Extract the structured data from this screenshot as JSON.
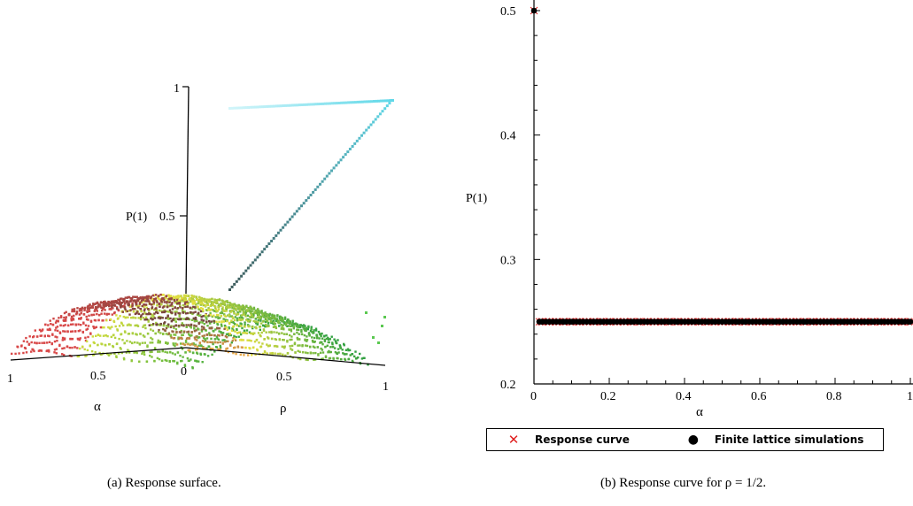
{
  "captions": {
    "a": "(a)  Response surface.",
    "b": "(b)  Response curve for ρ = 1/2."
  },
  "surface_labels": {
    "z_label": "P(1)",
    "z_tick_top": "1",
    "z_tick_mid": "0.5",
    "alpha_tick_1": "1",
    "alpha_tick_05": "0.5",
    "origin_tick": "0",
    "rho_tick_05": "0.5",
    "rho_tick_1": "1",
    "alpha_label": "α",
    "rho_label": "ρ"
  },
  "legend": {
    "response_label": "Response curve",
    "finite_label": "Finite lattice simulations"
  },
  "colors": {
    "response_marker": "#e02020",
    "finite_marker": "#000000",
    "surface_red": "#d84848",
    "surface_yellow": "#e8e040",
    "surface_green": "#30a040",
    "surface_cyan": "#60d8e8"
  },
  "chart_data": [
    {
      "type": "scatter",
      "title": "",
      "xlabel": "α",
      "ylabel": "ρ",
      "zlabel": "P(1)",
      "description_axes": [
        "α",
        "ρ",
        "P(1)"
      ],
      "zlim": [
        0,
        1
      ],
      "z_ticks": [
        "0.5",
        "1"
      ]
    },
    {
      "type": "scatter",
      "title": "",
      "xlabel": "α",
      "ylabel": "P(1)",
      "xlim": [
        0,
        1
      ],
      "ylim": [
        0.2,
        0.5
      ],
      "x_ticks": [
        "0",
        "0.2",
        "0.4",
        "0.6",
        "0.8",
        "1"
      ],
      "y_ticks": [
        "0.2",
        "0.3",
        "0.4",
        "0.5"
      ],
      "legend_position": "bottom",
      "series": [
        {
          "name": "Response curve",
          "marker": "x",
          "x": [
            0,
            0.02,
            0.04,
            0.06,
            0.08,
            0.1,
            0.12,
            0.14,
            0.16,
            0.18,
            0.2,
            0.22,
            0.24,
            0.26,
            0.28,
            0.3,
            0.32,
            0.34,
            0.36,
            0.38,
            0.4,
            0.42,
            0.44,
            0.46,
            0.48,
            0.5,
            0.52,
            0.54,
            0.56,
            0.58,
            0.6,
            0.62,
            0.64,
            0.66,
            0.68,
            0.7,
            0.72,
            0.74,
            0.76,
            0.78,
            0.8,
            0.82,
            0.84,
            0.86,
            0.88,
            0.9,
            0.92,
            0.94,
            0.96,
            0.98,
            1
          ],
          "y": [
            0.5,
            0.25,
            0.25,
            0.25,
            0.25,
            0.25,
            0.25,
            0.25,
            0.25,
            0.25,
            0.25,
            0.25,
            0.25,
            0.25,
            0.25,
            0.25,
            0.25,
            0.25,
            0.25,
            0.25,
            0.25,
            0.25,
            0.25,
            0.25,
            0.25,
            0.25,
            0.25,
            0.25,
            0.25,
            0.25,
            0.25,
            0.25,
            0.25,
            0.25,
            0.25,
            0.25,
            0.25,
            0.25,
            0.25,
            0.25,
            0.25,
            0.25,
            0.25,
            0.25,
            0.25,
            0.25,
            0.25,
            0.25,
            0.25,
            0.25,
            0.25
          ]
        },
        {
          "name": "Finite lattice simulations",
          "marker": "dot",
          "x": [
            0,
            0.02,
            0.04,
            0.06,
            0.08,
            0.1,
            0.12,
            0.14,
            0.16,
            0.18,
            0.2,
            0.22,
            0.24,
            0.26,
            0.28,
            0.3,
            0.32,
            0.34,
            0.36,
            0.38,
            0.4,
            0.42,
            0.44,
            0.46,
            0.48,
            0.5,
            0.52,
            0.54,
            0.56,
            0.58,
            0.6,
            0.62,
            0.64,
            0.66,
            0.68,
            0.7,
            0.72,
            0.74,
            0.76,
            0.78,
            0.8,
            0.82,
            0.84,
            0.86,
            0.88,
            0.9,
            0.92,
            0.94,
            0.96,
            0.98,
            1
          ],
          "y": [
            0.5,
            0.25,
            0.25,
            0.25,
            0.25,
            0.25,
            0.25,
            0.25,
            0.25,
            0.25,
            0.25,
            0.25,
            0.25,
            0.25,
            0.25,
            0.25,
            0.25,
            0.25,
            0.25,
            0.25,
            0.25,
            0.25,
            0.25,
            0.25,
            0.25,
            0.25,
            0.25,
            0.25,
            0.25,
            0.25,
            0.25,
            0.25,
            0.25,
            0.25,
            0.25,
            0.25,
            0.25,
            0.25,
            0.25,
            0.25,
            0.25,
            0.25,
            0.25,
            0.25,
            0.25,
            0.25,
            0.25,
            0.25,
            0.25,
            0.25,
            0.25
          ]
        }
      ]
    }
  ]
}
